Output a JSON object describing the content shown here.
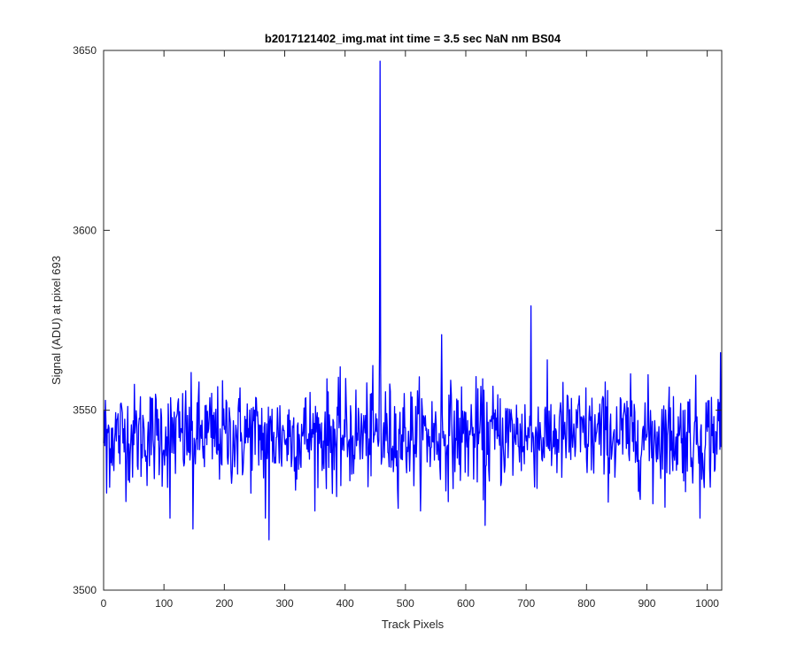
{
  "chart_data": {
    "type": "line",
    "title": "b2017121402_img.mat int time = 3.5 sec  NaN nm BS04",
    "xlabel": "Track Pixels",
    "ylabel": "Signal (ADU) at pixel 693",
    "xlim": [
      0,
      1024
    ],
    "ylim": [
      3500,
      3650
    ],
    "xticks": [
      0,
      100,
      200,
      300,
      400,
      500,
      600,
      700,
      800,
      900,
      1000
    ],
    "yticks": [
      3500,
      3550,
      3600,
      3650
    ],
    "grid": false,
    "line_color": "#0000ff",
    "series": [
      {
        "baseline": 3543,
        "noise_sd": 7,
        "n_points": 1024,
        "notable_points": [
          {
            "x": 5,
            "y": 3527
          },
          {
            "x": 110,
            "y": 3520
          },
          {
            "x": 148,
            "y": 3517
          },
          {
            "x": 268,
            "y": 3520
          },
          {
            "x": 274,
            "y": 3514
          },
          {
            "x": 386,
            "y": 3526
          },
          {
            "x": 455,
            "y": 3540
          },
          {
            "x": 457,
            "y": 3566
          },
          {
            "x": 458,
            "y": 3647
          },
          {
            "x": 459,
            "y": 3560
          },
          {
            "x": 460,
            "y": 3535
          },
          {
            "x": 560,
            "y": 3571
          },
          {
            "x": 632,
            "y": 3518
          },
          {
            "x": 708,
            "y": 3579
          },
          {
            "x": 910,
            "y": 3524
          },
          {
            "x": 988,
            "y": 3520
          },
          {
            "x": 1022,
            "y": 3566
          }
        ]
      }
    ]
  }
}
